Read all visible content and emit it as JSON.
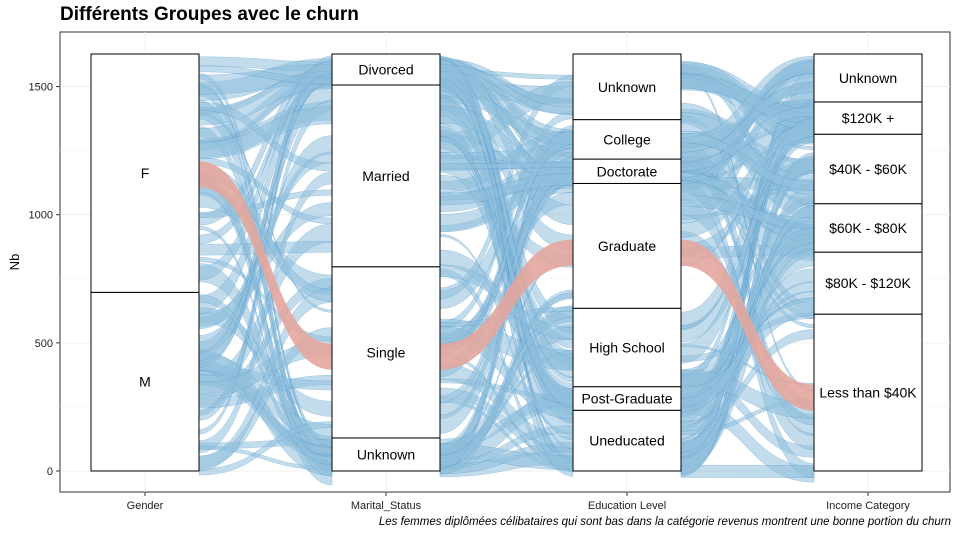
{
  "chart_data": {
    "type": "alluvial",
    "title": "Différents Groupes avec le churn",
    "caption": "Les femmes diplômées célibataires qui sont bas dans la catégorie revenus montrent une bonne portion du churn",
    "ylabel": "Nb",
    "ylim": [
      0,
      1627
    ],
    "yticks": [
      0,
      500,
      1000,
      1500
    ],
    "grid": true,
    "axes": [
      {
        "name": "Gender",
        "strata": [
          {
            "label": "M",
            "value": 697
          },
          {
            "label": "F",
            "value": 930
          }
        ]
      },
      {
        "name": "Marital_Status",
        "strata": [
          {
            "label": "Unknown",
            "value": 129
          },
          {
            "label": "Single",
            "value": 668
          },
          {
            "label": "Married",
            "value": 709
          },
          {
            "label": "Divorced",
            "value": 121
          }
        ]
      },
      {
        "name": "Education Level",
        "strata": [
          {
            "label": "Uneducated",
            "value": 237
          },
          {
            "label": "Post-Graduate",
            "value": 92
          },
          {
            "label": "High School",
            "value": 306
          },
          {
            "label": "Graduate",
            "value": 487
          },
          {
            "label": "Doctorate",
            "value": 95
          },
          {
            "label": "College",
            "value": 154
          },
          {
            "label": "Unknown",
            "value": 256
          }
        ]
      },
      {
        "name": "Income Category",
        "strata": [
          {
            "label": "Less than $40K",
            "value": 612
          },
          {
            "label": "$80K - $120K",
            "value": 242
          },
          {
            "label": "$60K - $80K",
            "value": 189
          },
          {
            "label": "$40K - $60K",
            "value": 271
          },
          {
            "label": "$120K +",
            "value": 126
          },
          {
            "label": "Unknown",
            "value": 187
          }
        ]
      }
    ],
    "highlight_path": [
      "F",
      "Single",
      "Graduate",
      "Less than $40K"
    ],
    "colors": {
      "flow": "#8fbfdd",
      "flow_edge": "#2b7fc0",
      "highlight": "#e3a69d",
      "stratum_fill": "#ffffff",
      "stratum_border": "#000000"
    }
  }
}
